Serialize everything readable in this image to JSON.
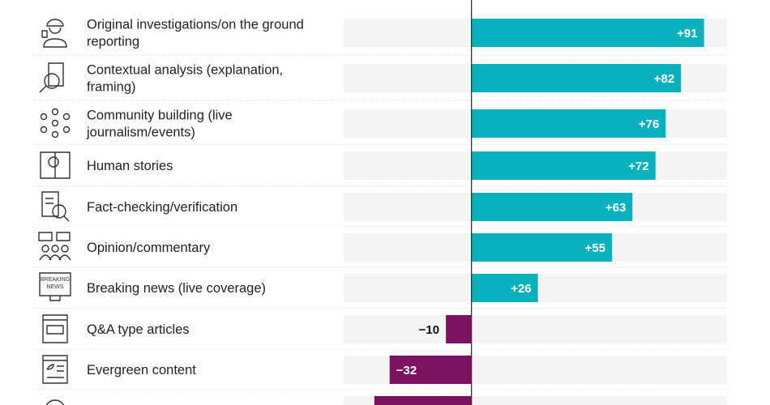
{
  "chart_data": {
    "type": "bar",
    "orientation": "horizontal",
    "diverging": true,
    "xlim": [
      -50,
      100
    ],
    "grid": false,
    "colors": {
      "positive": "#08b1bd",
      "negative": "#7b1361",
      "track": "#f4f4f4",
      "axis": "#333333"
    },
    "categories": [
      {
        "label": [
          "Original investigations/on the ground",
          "reporting"
        ],
        "icon": "reporter-icon",
        "value": 91,
        "value_label": "+91"
      },
      {
        "label": [
          "Contextual analysis (explanation,",
          "framing)"
        ],
        "icon": "magnifier-document-icon",
        "value": 82,
        "value_label": "+82"
      },
      {
        "label": [
          "Community building (live",
          "journalism/events)"
        ],
        "icon": "community-network-icon",
        "value": 76,
        "value_label": "+76"
      },
      {
        "label": [
          "Human stories"
        ],
        "icon": "person-story-icon",
        "value": 72,
        "value_label": "+72"
      },
      {
        "label": [
          "Fact-checking/verification"
        ],
        "icon": "checklist-magnifier-icon",
        "value": 63,
        "value_label": "+63"
      },
      {
        "label": [
          "Opinion/commentary"
        ],
        "icon": "group-speech-icon",
        "value": 55,
        "value_label": "+55"
      },
      {
        "label": [
          "Breaking news (live coverage)"
        ],
        "icon": "breaking-news-icon",
        "value": 26,
        "value_label": "+26"
      },
      {
        "label": [
          "Q&A type articles"
        ],
        "icon": "qa-browser-icon",
        "value": -10,
        "value_label": "−10"
      },
      {
        "label": [
          "Evergreen content"
        ],
        "icon": "leaf-document-icon",
        "value": -32,
        "value_label": "−32"
      },
      {
        "label": [],
        "icon": "globe-arrows-icon",
        "value": -38,
        "value_label": ""
      }
    ]
  }
}
